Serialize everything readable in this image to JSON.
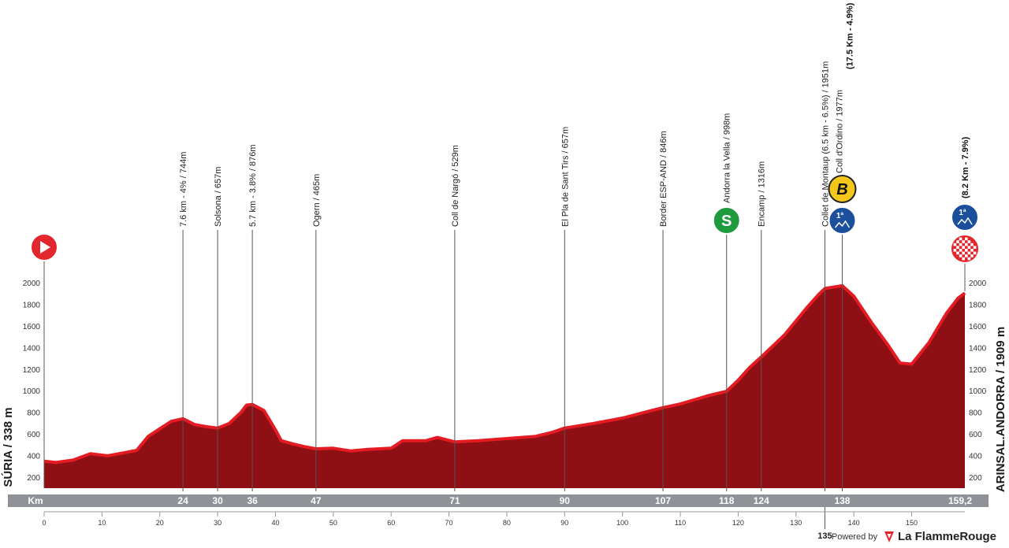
{
  "start_label": "SÚRIA / 338 m",
  "finish_label": "ARINSAL.ANDORRA / 1909 m",
  "km_axis_label": "Km",
  "km_final": "159,2",
  "powered_by": "Powered by",
  "brand_name": "La FlammeRouge",
  "colors": {
    "profile": "#8e0f14",
    "edge": "#e51b23",
    "km_bar": "#8f9397",
    "sprint": "#1f9a3e",
    "bonus": "#f2c61b",
    "climb": "#1b4f9c",
    "start": "#e3262e"
  },
  "chart_data": {
    "type": "area",
    "title": "",
    "xlabel": "Km",
    "ylabel": "",
    "xlim": [
      0,
      159.2
    ],
    "ylim": [
      100,
      2100
    ],
    "x_ticks": [
      0,
      10,
      20,
      30,
      40,
      50,
      60,
      70,
      80,
      90,
      100,
      110,
      120,
      130,
      140,
      150
    ],
    "y_ticks": [
      200,
      400,
      600,
      800,
      1000,
      1200,
      1400,
      1600,
      1800,
      2000
    ],
    "grid": false,
    "series": [
      {
        "x": [
          0,
          2,
          5,
          8,
          11,
          14,
          16,
          18,
          20,
          22,
          24,
          26,
          28,
          30,
          32,
          34,
          35,
          36,
          38,
          40,
          41,
          43,
          45,
          47,
          50,
          53,
          56,
          60,
          62,
          66,
          68,
          71,
          75,
          80,
          85,
          88,
          90,
          95,
          100,
          105,
          107,
          110,
          115,
          118,
          120,
          122,
          124,
          128,
          132,
          134,
          135,
          136,
          138,
          140,
          143,
          146,
          148,
          150,
          153,
          156,
          158,
          159.2
        ],
        "y": [
          350,
          338,
          360,
          420,
          400,
          430,
          450,
          580,
          650,
          720,
          744,
          690,
          670,
          657,
          700,
          800,
          870,
          876,
          820,
          640,
          540,
          510,
          485,
          465,
          470,
          445,
          460,
          470,
          540,
          540,
          570,
          529,
          540,
          560,
          580,
          620,
          657,
          700,
          750,
          820,
          846,
          880,
          960,
          998,
          1100,
          1220,
          1316,
          1520,
          1780,
          1900,
          1951,
          1960,
          1977,
          1880,
          1640,
          1420,
          1260,
          1250,
          1450,
          1720,
          1860,
          1909
        ]
      }
    ],
    "annotations": [
      {
        "km": 24,
        "label": "7.6 km - 4% / 744m"
      },
      {
        "km": 30,
        "label": "Solsona / 657m"
      },
      {
        "km": 36,
        "label": "5.7 km - 3.8% / 876m"
      },
      {
        "km": 47,
        "label": "Ogern / 465m"
      },
      {
        "km": 71,
        "label": "Coll de Nargó / 529m"
      },
      {
        "km": 90,
        "label": "El Pla de Sant Tirs / 657m"
      },
      {
        "km": 107,
        "label": "Border ESP-AND / 846m"
      },
      {
        "km": 118,
        "label": "Andorra la Vella / 998m",
        "marker": "S"
      },
      {
        "km": 124,
        "label": "Encamp / 1316m"
      },
      {
        "km": 135,
        "label": "Collet de Montaup (6.5 km - 6.5%) / 1951m"
      },
      {
        "km": 138,
        "label": "Coll d'Ordino / 1977m",
        "label_bold": "(17.5 Km - 4.9%)",
        "marker": "B",
        "climb": "1ª"
      },
      {
        "km": 159.2,
        "label_bold": "(8.2 Km - 7.9%)",
        "climb": "1ª",
        "finish": true
      }
    ],
    "km_markers": [
      "24",
      "30",
      "36",
      "47",
      "71",
      "90",
      "107",
      "118",
      "124",
      "138"
    ],
    "km_marker_below": "135"
  }
}
